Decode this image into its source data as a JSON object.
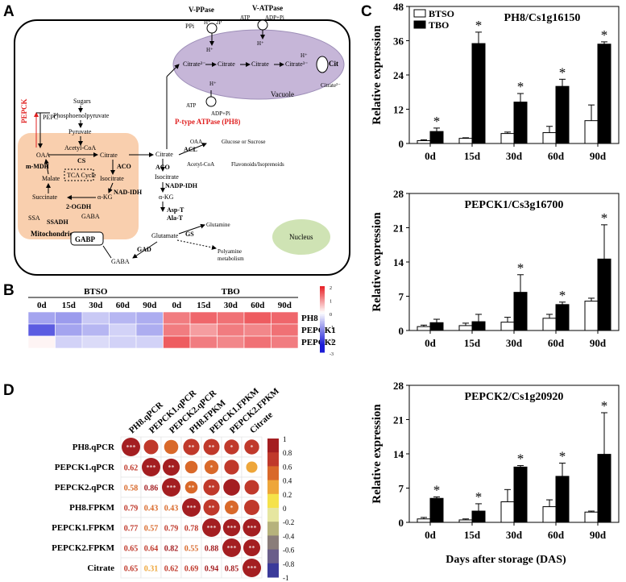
{
  "panels": {
    "a": "A",
    "b": "B",
    "c": "C",
    "d": "D"
  },
  "pathway": {
    "vppase": "V-PPase",
    "vatpase": "V-ATPase",
    "ppi": "PPi",
    "twoP": "2P",
    "atp1": "ATP",
    "adp1": "ADP+Pi",
    "hplus": "H⁺",
    "citrate3": "Citrate³⁻",
    "citrate": "Citrate",
    "cit": "Cit",
    "citrate2": "Citrate²⁻",
    "vacuole": "Vacuole",
    "atp2": "ATP",
    "adp2": "ADP+Pi",
    "ph8": "P-type ATPase (PH8)",
    "sugars": "Sugars",
    "pep": "Phosphoenolpyruvate",
    "pyruvate": "Pyruvate",
    "pepck": "PEPCK",
    "pepc": "PEPC",
    "oaa": "OAA",
    "acetylcoa": "Acetyl-CoA",
    "citrate_m": "Citrate",
    "cs": "CS",
    "mmdh": "m-MDH",
    "aco": "ACO",
    "tca": "TCA Cycle",
    "malate": "Malate",
    "isocitrate": "Isocitrate",
    "nadidh": "NAD-IDH",
    "succinate": "Succinate",
    "akg": "α-KG",
    "ogdh": "2-OGDH",
    "ssa": "SSA",
    "ssadh": "SSADH",
    "gaba_m": "GABA",
    "mito": "Mitochondrion",
    "gabp": "GABP",
    "citrate_c": "Citrate",
    "acl": "ACL",
    "oaa_c": "OAA",
    "glucose": "Glucose or Sucrose",
    "acetylcoa_c": "Acetyl-CoA",
    "flav": "Flavonoids/Isoprenoids",
    "aco_c": "ACO",
    "isocitrate_c": "Isocitrate",
    "nadpidh": "NADP-IDH",
    "akg_c": "α-KG",
    "asp": "Asp-T",
    "ala": "Ala-T",
    "glutamine": "Glutamine",
    "gs": "GS",
    "glutamate": "Glutamate",
    "gad": "GAD",
    "gaba_c": "GABA",
    "polyamine1": "Polyamine",
    "polyamine2": "metabolism",
    "nucleus": "Nucleus"
  },
  "heatmap": {
    "groups": [
      "BTSO",
      "TBO"
    ],
    "days": [
      "0d",
      "15d",
      "30d",
      "60d",
      "90d",
      "0d",
      "15d",
      "30d",
      "60d",
      "90d"
    ],
    "genes": [
      "PH8",
      "PEPCK1",
      "PEPCK2"
    ],
    "values": [
      [
        -1.0,
        -1.1,
        -0.6,
        -0.8,
        -0.9,
        1.2,
        1.4,
        1.3,
        1.5,
        1.4
      ],
      [
        -1.8,
        -1.0,
        -0.8,
        -0.5,
        -0.9,
        1.2,
        0.9,
        1.2,
        1.1,
        1.3
      ],
      [
        0.1,
        -0.5,
        -0.4,
        -0.5,
        -0.5,
        1.5,
        1.2,
        1.1,
        1.3,
        1.2
      ]
    ],
    "scale_ticks": [
      "2",
      "1",
      "0",
      "-1",
      "-2",
      "-3"
    ],
    "colors": {
      "high": "#e8252b",
      "mid": "#ffffff",
      "low": "#1c1cd6"
    }
  },
  "chart_data": [
    {
      "type": "bar",
      "title": "PH8/Cs1g16150",
      "categories": [
        "0d",
        "15d",
        "30d",
        "60d",
        "90d"
      ],
      "ylabel": "Relative expression",
      "ylim": [
        0,
        48
      ],
      "yticks": [
        "0",
        "12",
        "24",
        "36",
        "48"
      ],
      "series": [
        {
          "name": "BTSO",
          "values": [
            1.0,
            1.8,
            3.5,
            3.8,
            8.0
          ],
          "errors": [
            0.3,
            0.2,
            0.5,
            2.2,
            5.5
          ]
        },
        {
          "name": "TBO",
          "values": [
            4.2,
            35.0,
            14.5,
            20.0,
            34.8
          ],
          "errors": [
            1.2,
            4.0,
            3.0,
            2.5,
            0.8
          ]
        }
      ],
      "significance": [
        "*",
        "*",
        "*",
        "*",
        "*"
      ]
    },
    {
      "type": "bar",
      "title": "PEPCK1/Cs3g16700",
      "categories": [
        "0d",
        "15d",
        "30d",
        "60d",
        "90d"
      ],
      "ylabel": "Relative expression",
      "ylim": [
        0,
        28
      ],
      "yticks": [
        "0",
        "7",
        "14",
        "21",
        "28"
      ],
      "series": [
        {
          "name": "BTSO",
          "values": [
            0.8,
            1.0,
            1.7,
            2.5,
            6.0
          ],
          "errors": [
            0.3,
            0.5,
            1.0,
            0.8,
            0.6
          ]
        },
        {
          "name": "TBO",
          "values": [
            1.6,
            1.8,
            7.8,
            5.3,
            14.6
          ],
          "errors": [
            0.7,
            1.5,
            3.6,
            0.5,
            7.0
          ]
        }
      ],
      "significance": [
        "",
        "",
        "*",
        "*",
        "*"
      ]
    },
    {
      "type": "bar",
      "title": "PEPCK2/Cs1g20920",
      "categories": [
        "0d",
        "15d",
        "30d",
        "60d",
        "90d"
      ],
      "ylabel": "Relative expression",
      "ylim": [
        0,
        28
      ],
      "yticks": [
        "0",
        "7",
        "14",
        "21",
        "28"
      ],
      "xlabel": "Days after storage (DAS)",
      "series": [
        {
          "name": "BTSO",
          "values": [
            0.7,
            0.5,
            4.2,
            3.2,
            2.1
          ],
          "errors": [
            0.3,
            0.2,
            2.5,
            1.4,
            0.2
          ]
        },
        {
          "name": "TBO",
          "values": [
            4.9,
            2.3,
            11.3,
            9.4,
            13.9
          ],
          "errors": [
            0.3,
            1.5,
            0.3,
            2.7,
            8.5
          ]
        }
      ],
      "significance": [
        "*",
        "*",
        "*",
        "*",
        "*"
      ]
    }
  ],
  "corr": {
    "labels": [
      "PH8.qPCR",
      "PEPCK1.qPCR",
      "PEPCK2.qPCR",
      "PH8.FPKM",
      "PEPCK1.FPKM",
      "PEPCK2.FPKM",
      "Citrate"
    ],
    "lower": [
      [],
      [
        "0.62"
      ],
      [
        "0.58",
        "0.86"
      ],
      [
        "0.79",
        "0.43",
        "0.43"
      ],
      [
        "0.77",
        "0.57",
        "0.79",
        "0.78"
      ],
      [
        "0.65",
        "0.64",
        "0.82",
        "0.55",
        "0.88"
      ],
      [
        "0.65",
        "0.31",
        "0.62",
        "0.69",
        "0.94",
        "0.85"
      ]
    ],
    "diag": [
      "***",
      "***",
      "***",
      "***",
      "***",
      "***",
      "***"
    ],
    "upper_stars": [
      [
        "",
        "",
        "**",
        "**",
        "*",
        "*"
      ],
      [
        "**",
        "",
        "*",
        ""
      ],
      [
        "**",
        "**",
        ""
      ],
      [
        "**",
        "*",
        ""
      ],
      [
        "***",
        "***"
      ],
      [
        "**"
      ]
    ],
    "colorbar_ticks": [
      "1",
      "0.8",
      "0.6",
      "0.4",
      "0.2",
      "0",
      "-0.2",
      "-0.4",
      "-0.6",
      "-0.8",
      "-1"
    ]
  }
}
